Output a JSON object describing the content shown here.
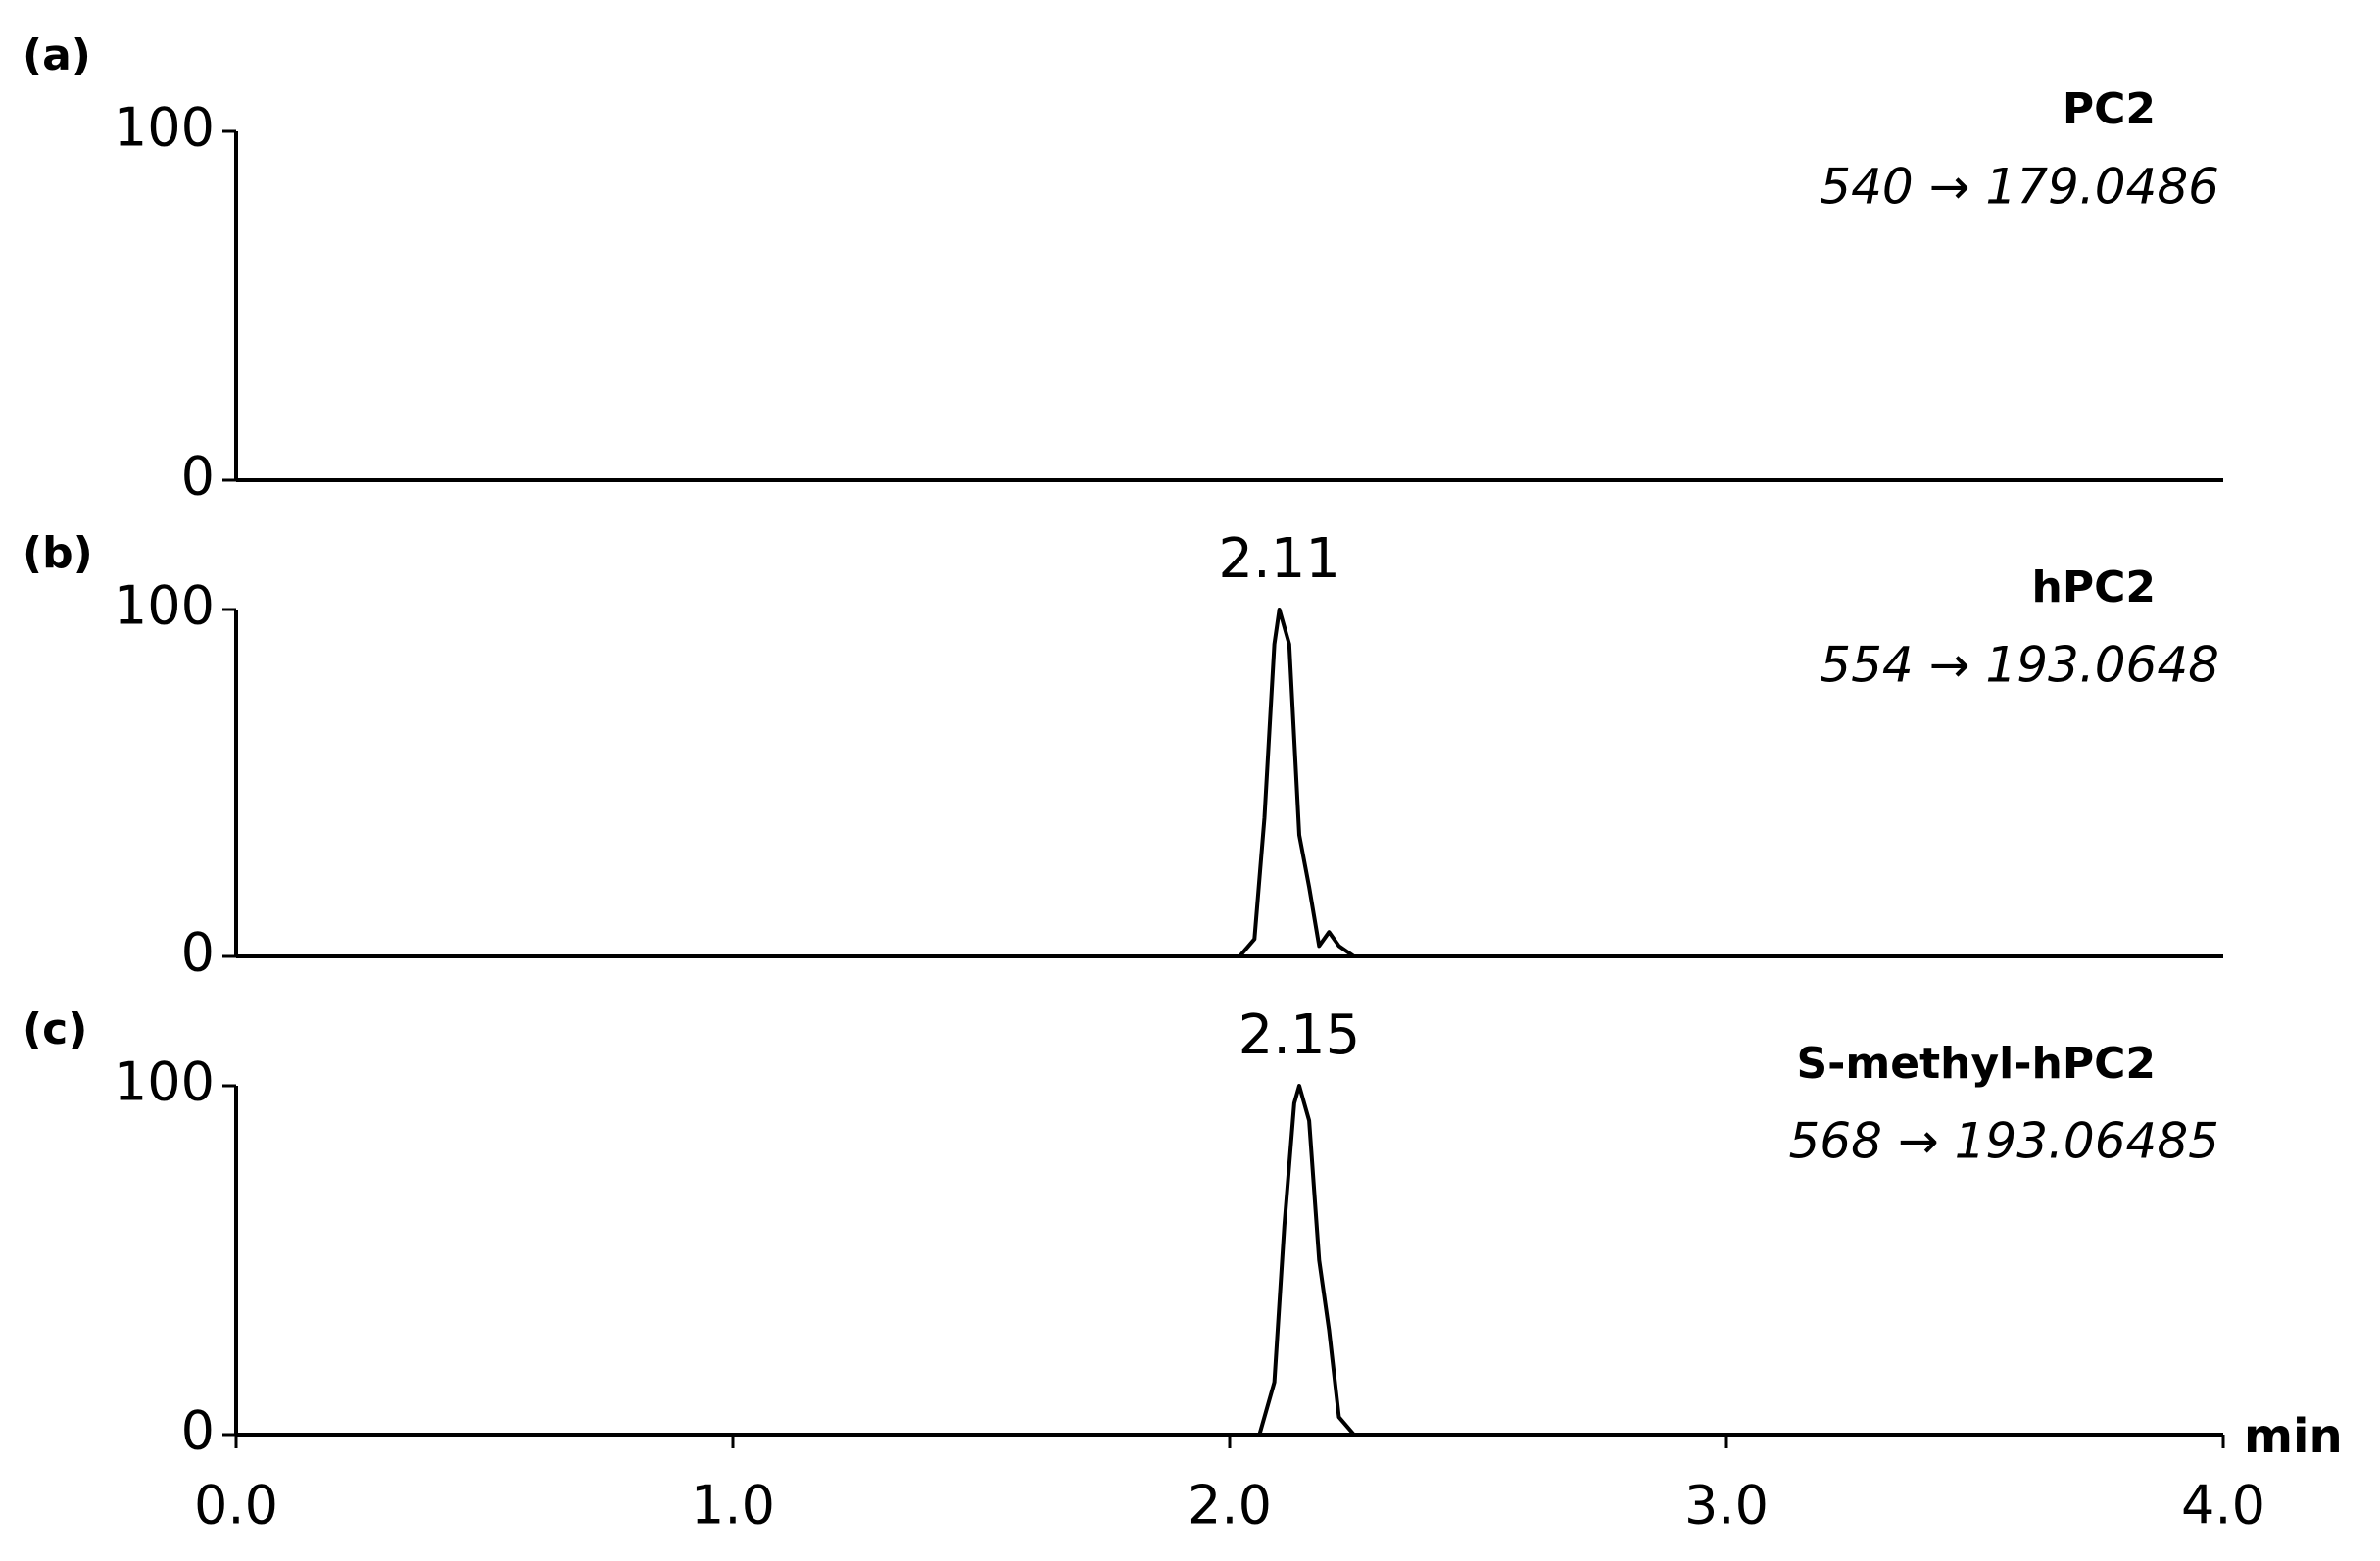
{
  "chart_data": [
    {
      "type": "line",
      "label": "(a)",
      "title": "PC2",
      "subtitle": "540 → 179.0486",
      "x": [
        0,
        4.0
      ],
      "series": [
        {
          "color": "#000000",
          "values": [
            0,
            0
          ]
        }
      ],
      "xlim": [
        0,
        4.0
      ],
      "ylim": [
        0,
        100
      ],
      "yticks": [
        0,
        100
      ]
    },
    {
      "type": "line",
      "label": "(b)",
      "title": "hPC2",
      "subtitle": "554 → 193.0648",
      "peak_label": "2.11",
      "x": [
        0,
        2.0,
        2.02,
        2.05,
        2.07,
        2.09,
        2.1,
        2.12,
        2.14,
        2.16,
        2.18,
        2.2,
        2.22,
        2.25,
        4.0
      ],
      "series": [
        {
          "color": "#000000",
          "values": [
            0,
            0,
            0,
            5,
            40,
            90,
            100,
            90,
            35,
            20,
            3,
            7,
            3,
            0,
            0
          ]
        }
      ],
      "xlim": [
        0,
        4.0
      ],
      "ylim": [
        0,
        100
      ],
      "yticks": [
        0,
        100
      ]
    },
    {
      "type": "line",
      "label": "(c)",
      "title": "S-methyl-hPC2",
      "subtitle": "568 → 193.06485",
      "peak_label": "2.15",
      "x": [
        0,
        2.0,
        2.06,
        2.09,
        2.11,
        2.13,
        2.14,
        2.16,
        2.18,
        2.2,
        2.22,
        2.25,
        4.0
      ],
      "series": [
        {
          "color": "#000000",
          "values": [
            0,
            0,
            0,
            15,
            60,
            95,
            100,
            90,
            50,
            30,
            5,
            0,
            0
          ]
        }
      ],
      "xlim": [
        0,
        4.0
      ],
      "ylim": [
        0,
        100
      ],
      "yticks": [
        0,
        100
      ],
      "xlabel": "min",
      "xticks": [
        {
          "value": 0,
          "label": "0.0"
        },
        {
          "value": 1,
          "label": "1.0"
        },
        {
          "value": 2,
          "label": "2.0"
        },
        {
          "value": 3,
          "label": "3.0"
        },
        {
          "value": 4,
          "label": "4.0"
        }
      ]
    }
  ]
}
